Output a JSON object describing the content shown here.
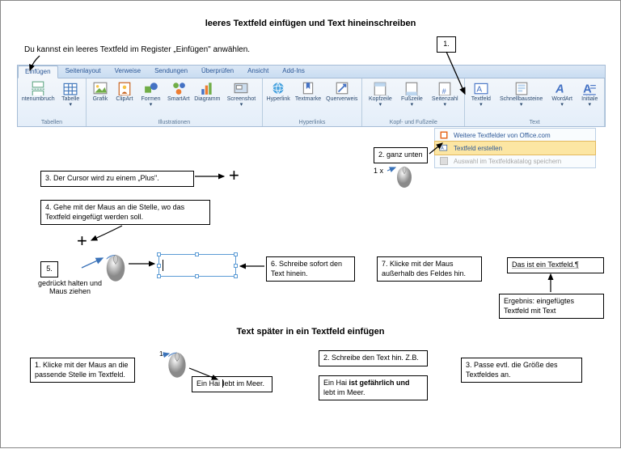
{
  "title1": "leeres Textfeld einfügen und Text hineinschreiben",
  "title2": "Text später in ein Textfeld einfügen",
  "intro": "Du kannst ein leeres Textfeld im Register „Einfügen\" anwählen.",
  "step_labels": {
    "s1": "1.",
    "s2": "2. ganz unten",
    "s3": "3. Der Cursor wird zu einem „Plus\".",
    "s4": "4. Gehe mit der Maus an die Stelle, wo das Textfeld eingefügt werden soll.",
    "s5": "5.",
    "s5_sub": "gedrückt halten und Maus ziehen",
    "s6": "6. Schreibe sofort den Text hinein.",
    "s7": "7. Klicke mit der Maus außerhalb des Feldes hin.",
    "result_caption": "Ergebnis: eingefügtes Textfeld mit Text",
    "result_sample": "Das ist ein Textfeld.¶"
  },
  "below": {
    "b1": "1. Klicke mit der Maus an die passende Stelle im Textfeld.",
    "b2": "2. Schreibe den Text hin. Z.B.",
    "b3": "3. Passe evtl. die Größe des Textfeldes an.",
    "sample1": "Ein Hai lebt im Meer.",
    "sample2a": "Ein Hai ",
    "sample2b": "ist gefährlich und",
    "sample2c": " lebt im Meer."
  },
  "click_count": "1 x",
  "ribbon": {
    "tabs": [
      "Einfügen",
      "Seitenlayout",
      "Verweise",
      "Sendungen",
      "Überprüfen",
      "Ansicht",
      "Add-Ins"
    ],
    "active_tab": 0,
    "groups": [
      {
        "label": "Tabellen",
        "items": [
          {
            "label": "ntenumbruch",
            "icon": "page-break"
          },
          {
            "label": "Tabelle ▾",
            "icon": "table"
          }
        ]
      },
      {
        "label": "Illustrationen",
        "items": [
          {
            "label": "Grafik",
            "icon": "picture"
          },
          {
            "label": "ClipArt",
            "icon": "clipart"
          },
          {
            "label": "Formen ▾",
            "icon": "shapes"
          },
          {
            "label": "SmartArt",
            "icon": "smartart"
          },
          {
            "label": "Diagramm",
            "icon": "chart"
          },
          {
            "label": "Screenshot ▾",
            "icon": "screenshot"
          }
        ]
      },
      {
        "label": "Hyperlinks",
        "items": [
          {
            "label": "Hyperlink",
            "icon": "hyperlink"
          },
          {
            "label": "Textmarke",
            "icon": "bookmark"
          },
          {
            "label": "Querverweis",
            "icon": "crossref"
          }
        ]
      },
      {
        "label": "Kopf- und Fußzeile",
        "items": [
          {
            "label": "Kopfzeile ▾",
            "icon": "header"
          },
          {
            "label": "Fußzeile ▾",
            "icon": "footer"
          },
          {
            "label": "Seitenzahl ▾",
            "icon": "pagenum"
          }
        ]
      },
      {
        "label": "Text",
        "items": [
          {
            "label": "Textfeld ▾",
            "icon": "textbox"
          },
          {
            "label": "Schnellbausteine ▾",
            "icon": "quickparts"
          },
          {
            "label": "WordArt ▾",
            "icon": "wordart"
          },
          {
            "label": "Initiale ▾",
            "icon": "dropcap"
          }
        ]
      }
    ]
  },
  "submenu": {
    "r1": "Weitere Textfelder von Office.com",
    "r2": "Textfeld erstellen",
    "r3": "Auswahl im Textfeldkatalog speichern"
  },
  "colors": {
    "border": "#000000",
    "ribbon_bg_top": "#f2f6fb",
    "accent_blue": "#5b9bd5",
    "arrow_blue": "#3b73b9"
  }
}
